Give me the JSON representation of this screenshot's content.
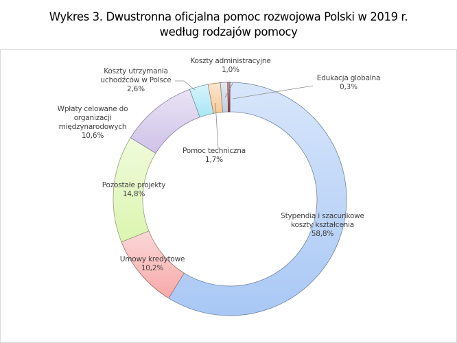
{
  "chart_data": {
    "type": "pie",
    "variant": "donut",
    "title_line1": "Wykres 3. Dwustronna oficjalna pomoc rozwojowa Polski w 2019 r.",
    "title_line2": "według rodzajów pomocy",
    "unit": "%",
    "slices": [
      {
        "label": [
          "Stypendia i szacunkowe",
          "koszty kształcenia"
        ],
        "value": 58.8,
        "value_text": "58,8%",
        "color": "#a9c8f5"
      },
      {
        "label": [
          "Umowy kredytowe"
        ],
        "value": 10.2,
        "value_text": "10,2%",
        "color": "#f7a9a8"
      },
      {
        "label": [
          "Pozostałe projekty"
        ],
        "value": 14.8,
        "value_text": "14,8%",
        "color": "#dcf5b0"
      },
      {
        "label": [
          "Wpłaty celowane do",
          "organizacji",
          "międzynarodowych"
        ],
        "value": 10.6,
        "value_text": "10,6%",
        "color": "#cfc2e8"
      },
      {
        "label": [
          "Koszty utrzymania",
          "uchodźców w Polsce"
        ],
        "value": 2.6,
        "value_text": "2,6%",
        "color": "#a8e6f5"
      },
      {
        "label": [
          "Pomoc techniczna"
        ],
        "value": 1.7,
        "value_text": "1,7%",
        "color": "#f9c894"
      },
      {
        "label": [
          "Koszty administracyjne"
        ],
        "value": 1.0,
        "value_text": "1,0%",
        "color": "#c2cde0"
      },
      {
        "label": [
          "Edukacja globalna"
        ],
        "value": 0.3,
        "value_text": "0,3%",
        "color": "#a0403e"
      }
    ],
    "start_angle": "top",
    "direction": "clockwise",
    "legend": "none"
  }
}
